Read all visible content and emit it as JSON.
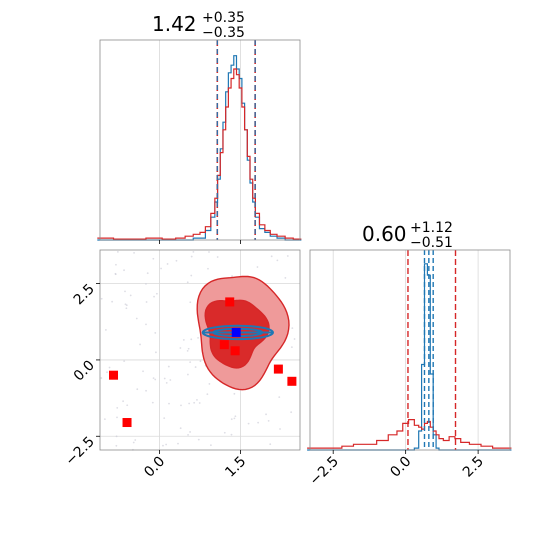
{
  "colors": {
    "truth_blue": "#1f77b4",
    "model_red": "#d62728",
    "marker_red": "#ff0000",
    "marker_blue": "#0000ff",
    "grid": "#d9d9d9"
  },
  "chart_data": {
    "type": "corner",
    "titles": {
      "p1": {
        "value": "1.42",
        "plus": "+0.35",
        "minus": "−0.35"
      },
      "p2": {
        "value": "0.60",
        "plus": "+1.12",
        "minus": "−0.51"
      }
    },
    "axes": {
      "p1": {
        "range": [
          -1.1,
          2.6
        ],
        "ticks": [
          0.0,
          1.5
        ],
        "tick_labels": [
          "0.0",
          "1.5"
        ]
      },
      "p2": {
        "range": [
          -3.3,
          3.6
        ],
        "ticks": [
          -2.5,
          0.0,
          2.5
        ],
        "tick_labels": [
          "−2.5",
          "0.0",
          "2.5"
        ]
      },
      "p2_vertical": {
        "range": [
          -2.95,
          3.6
        ],
        "ticks": [
          -2.5,
          0.0,
          2.5
        ],
        "tick_labels": [
          "−2.5",
          "0.0",
          "2.5"
        ]
      }
    },
    "grid": true,
    "hist_p1": {
      "bin_centers": [
        -1.0,
        -0.7,
        -0.4,
        -0.1,
        0.2,
        0.4,
        0.55,
        0.7,
        0.8,
        0.9,
        1.0,
        1.05,
        1.1,
        1.15,
        1.2,
        1.25,
        1.3,
        1.35,
        1.4,
        1.45,
        1.5,
        1.55,
        1.6,
        1.65,
        1.7,
        1.75,
        1.8,
        1.9,
        2.0,
        2.1,
        2.25,
        2.4,
        2.55
      ],
      "truth": [
        0,
        0,
        0,
        0,
        0,
        0,
        0,
        0.01,
        0.01,
        0.05,
        0.12,
        0.2,
        0.32,
        0.48,
        0.62,
        0.78,
        0.88,
        0.92,
        0.97,
        0.9,
        0.85,
        0.72,
        0.58,
        0.42,
        0.3,
        0.2,
        0.12,
        0.06,
        0.04,
        0.02,
        0.01,
        0,
        0
      ],
      "model": [
        0.01,
        0.005,
        0.005,
        0.01,
        0.005,
        0.01,
        0.02,
        0.03,
        0.04,
        0.07,
        0.14,
        0.22,
        0.34,
        0.46,
        0.58,
        0.7,
        0.8,
        0.85,
        0.9,
        0.87,
        0.8,
        0.7,
        0.58,
        0.44,
        0.32,
        0.22,
        0.14,
        0.08,
        0.05,
        0.03,
        0.02,
        0.01,
        0.005
      ],
      "quantile_lines_truth": [
        1.07,
        1.77
      ],
      "quantile_lines_model": [
        1.07,
        1.77
      ]
    },
    "hist_p2": {
      "bin_centers": [
        -3.2,
        -2.8,
        -2.4,
        -2.0,
        -1.6,
        -1.2,
        -0.8,
        -0.4,
        -0.2,
        0.0,
        0.2,
        0.4,
        0.5,
        0.6,
        0.7,
        0.8,
        0.9,
        1.0,
        1.1,
        1.2,
        1.4,
        1.6,
        1.8,
        2.0,
        2.4,
        2.8,
        3.2,
        3.5
      ],
      "truth": [
        0,
        0,
        0,
        0,
        0,
        0,
        0,
        0,
        0,
        0,
        0,
        0.01,
        0.1,
        0.45,
        0.98,
        0.92,
        0.4,
        0.08,
        0.01,
        0,
        0,
        0,
        0,
        0,
        0,
        0,
        0,
        0
      ],
      "model": [
        0.01,
        0.01,
        0.01,
        0.02,
        0.03,
        0.03,
        0.05,
        0.08,
        0.1,
        0.14,
        0.16,
        0.13,
        0.12,
        0.11,
        0.14,
        0.15,
        0.12,
        0.1,
        0.08,
        0.06,
        0.05,
        0.07,
        0.06,
        0.04,
        0.03,
        0.02,
        0.01,
        0.01
      ],
      "quantile_lines_truth": [
        0.65,
        0.8,
        0.95
      ],
      "quantile_lines_model": [
        0.08,
        1.72
      ]
    },
    "scatter_markers": {
      "red": [
        [
          -0.85,
          -0.5
        ],
        [
          -0.6,
          -2.05
        ],
        [
          1.3,
          1.9
        ],
        [
          1.2,
          0.5
        ],
        [
          1.4,
          0.3
        ],
        [
          2.2,
          -0.3
        ],
        [
          2.45,
          -0.7
        ]
      ],
      "blue": [
        [
          1.42,
          0.9
        ]
      ]
    },
    "model_contours": {
      "outer_center": [
        1.5,
        1.0
      ],
      "outer_radius": [
        0.82,
        1.85
      ],
      "inner_center": [
        1.4,
        0.95
      ],
      "inner_radius": [
        0.55,
        1.1
      ]
    },
    "truth_contours": {
      "center": [
        1.45,
        0.9
      ],
      "radius": [
        0.65,
        0.22
      ]
    }
  }
}
